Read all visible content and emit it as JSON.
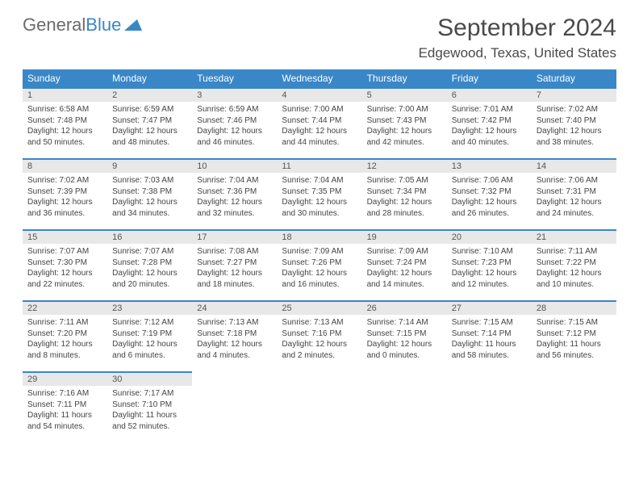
{
  "logo": {
    "text_gray": "General",
    "text_blue": "Blue"
  },
  "title": "September 2024",
  "location": "Edgewood, Texas, United States",
  "colors": {
    "header_bg": "#3a87c8",
    "header_text": "#ffffff",
    "daynum_bg": "#e8e8e8",
    "cell_border": "#3a87c8",
    "text": "#444444",
    "logo_gray": "#6b6b6b",
    "logo_blue": "#3a87c8"
  },
  "day_headers": [
    "Sunday",
    "Monday",
    "Tuesday",
    "Wednesday",
    "Thursday",
    "Friday",
    "Saturday"
  ],
  "days": [
    {
      "n": "1",
      "sr": "Sunrise: 6:58 AM",
      "ss": "Sunset: 7:48 PM",
      "d1": "Daylight: 12 hours",
      "d2": "and 50 minutes."
    },
    {
      "n": "2",
      "sr": "Sunrise: 6:59 AM",
      "ss": "Sunset: 7:47 PM",
      "d1": "Daylight: 12 hours",
      "d2": "and 48 minutes."
    },
    {
      "n": "3",
      "sr": "Sunrise: 6:59 AM",
      "ss": "Sunset: 7:46 PM",
      "d1": "Daylight: 12 hours",
      "d2": "and 46 minutes."
    },
    {
      "n": "4",
      "sr": "Sunrise: 7:00 AM",
      "ss": "Sunset: 7:44 PM",
      "d1": "Daylight: 12 hours",
      "d2": "and 44 minutes."
    },
    {
      "n": "5",
      "sr": "Sunrise: 7:00 AM",
      "ss": "Sunset: 7:43 PM",
      "d1": "Daylight: 12 hours",
      "d2": "and 42 minutes."
    },
    {
      "n": "6",
      "sr": "Sunrise: 7:01 AM",
      "ss": "Sunset: 7:42 PM",
      "d1": "Daylight: 12 hours",
      "d2": "and 40 minutes."
    },
    {
      "n": "7",
      "sr": "Sunrise: 7:02 AM",
      "ss": "Sunset: 7:40 PM",
      "d1": "Daylight: 12 hours",
      "d2": "and 38 minutes."
    },
    {
      "n": "8",
      "sr": "Sunrise: 7:02 AM",
      "ss": "Sunset: 7:39 PM",
      "d1": "Daylight: 12 hours",
      "d2": "and 36 minutes."
    },
    {
      "n": "9",
      "sr": "Sunrise: 7:03 AM",
      "ss": "Sunset: 7:38 PM",
      "d1": "Daylight: 12 hours",
      "d2": "and 34 minutes."
    },
    {
      "n": "10",
      "sr": "Sunrise: 7:04 AM",
      "ss": "Sunset: 7:36 PM",
      "d1": "Daylight: 12 hours",
      "d2": "and 32 minutes."
    },
    {
      "n": "11",
      "sr": "Sunrise: 7:04 AM",
      "ss": "Sunset: 7:35 PM",
      "d1": "Daylight: 12 hours",
      "d2": "and 30 minutes."
    },
    {
      "n": "12",
      "sr": "Sunrise: 7:05 AM",
      "ss": "Sunset: 7:34 PM",
      "d1": "Daylight: 12 hours",
      "d2": "and 28 minutes."
    },
    {
      "n": "13",
      "sr": "Sunrise: 7:06 AM",
      "ss": "Sunset: 7:32 PM",
      "d1": "Daylight: 12 hours",
      "d2": "and 26 minutes."
    },
    {
      "n": "14",
      "sr": "Sunrise: 7:06 AM",
      "ss": "Sunset: 7:31 PM",
      "d1": "Daylight: 12 hours",
      "d2": "and 24 minutes."
    },
    {
      "n": "15",
      "sr": "Sunrise: 7:07 AM",
      "ss": "Sunset: 7:30 PM",
      "d1": "Daylight: 12 hours",
      "d2": "and 22 minutes."
    },
    {
      "n": "16",
      "sr": "Sunrise: 7:07 AM",
      "ss": "Sunset: 7:28 PM",
      "d1": "Daylight: 12 hours",
      "d2": "and 20 minutes."
    },
    {
      "n": "17",
      "sr": "Sunrise: 7:08 AM",
      "ss": "Sunset: 7:27 PM",
      "d1": "Daylight: 12 hours",
      "d2": "and 18 minutes."
    },
    {
      "n": "18",
      "sr": "Sunrise: 7:09 AM",
      "ss": "Sunset: 7:26 PM",
      "d1": "Daylight: 12 hours",
      "d2": "and 16 minutes."
    },
    {
      "n": "19",
      "sr": "Sunrise: 7:09 AM",
      "ss": "Sunset: 7:24 PM",
      "d1": "Daylight: 12 hours",
      "d2": "and 14 minutes."
    },
    {
      "n": "20",
      "sr": "Sunrise: 7:10 AM",
      "ss": "Sunset: 7:23 PM",
      "d1": "Daylight: 12 hours",
      "d2": "and 12 minutes."
    },
    {
      "n": "21",
      "sr": "Sunrise: 7:11 AM",
      "ss": "Sunset: 7:22 PM",
      "d1": "Daylight: 12 hours",
      "d2": "and 10 minutes."
    },
    {
      "n": "22",
      "sr": "Sunrise: 7:11 AM",
      "ss": "Sunset: 7:20 PM",
      "d1": "Daylight: 12 hours",
      "d2": "and 8 minutes."
    },
    {
      "n": "23",
      "sr": "Sunrise: 7:12 AM",
      "ss": "Sunset: 7:19 PM",
      "d1": "Daylight: 12 hours",
      "d2": "and 6 minutes."
    },
    {
      "n": "24",
      "sr": "Sunrise: 7:13 AM",
      "ss": "Sunset: 7:18 PM",
      "d1": "Daylight: 12 hours",
      "d2": "and 4 minutes."
    },
    {
      "n": "25",
      "sr": "Sunrise: 7:13 AM",
      "ss": "Sunset: 7:16 PM",
      "d1": "Daylight: 12 hours",
      "d2": "and 2 minutes."
    },
    {
      "n": "26",
      "sr": "Sunrise: 7:14 AM",
      "ss": "Sunset: 7:15 PM",
      "d1": "Daylight: 12 hours",
      "d2": "and 0 minutes."
    },
    {
      "n": "27",
      "sr": "Sunrise: 7:15 AM",
      "ss": "Sunset: 7:14 PM",
      "d1": "Daylight: 11 hours",
      "d2": "and 58 minutes."
    },
    {
      "n": "28",
      "sr": "Sunrise: 7:15 AM",
      "ss": "Sunset: 7:12 PM",
      "d1": "Daylight: 11 hours",
      "d2": "and 56 minutes."
    },
    {
      "n": "29",
      "sr": "Sunrise: 7:16 AM",
      "ss": "Sunset: 7:11 PM",
      "d1": "Daylight: 11 hours",
      "d2": "and 54 minutes."
    },
    {
      "n": "30",
      "sr": "Sunrise: 7:17 AM",
      "ss": "Sunset: 7:10 PM",
      "d1": "Daylight: 11 hours",
      "d2": "and 52 minutes."
    }
  ]
}
